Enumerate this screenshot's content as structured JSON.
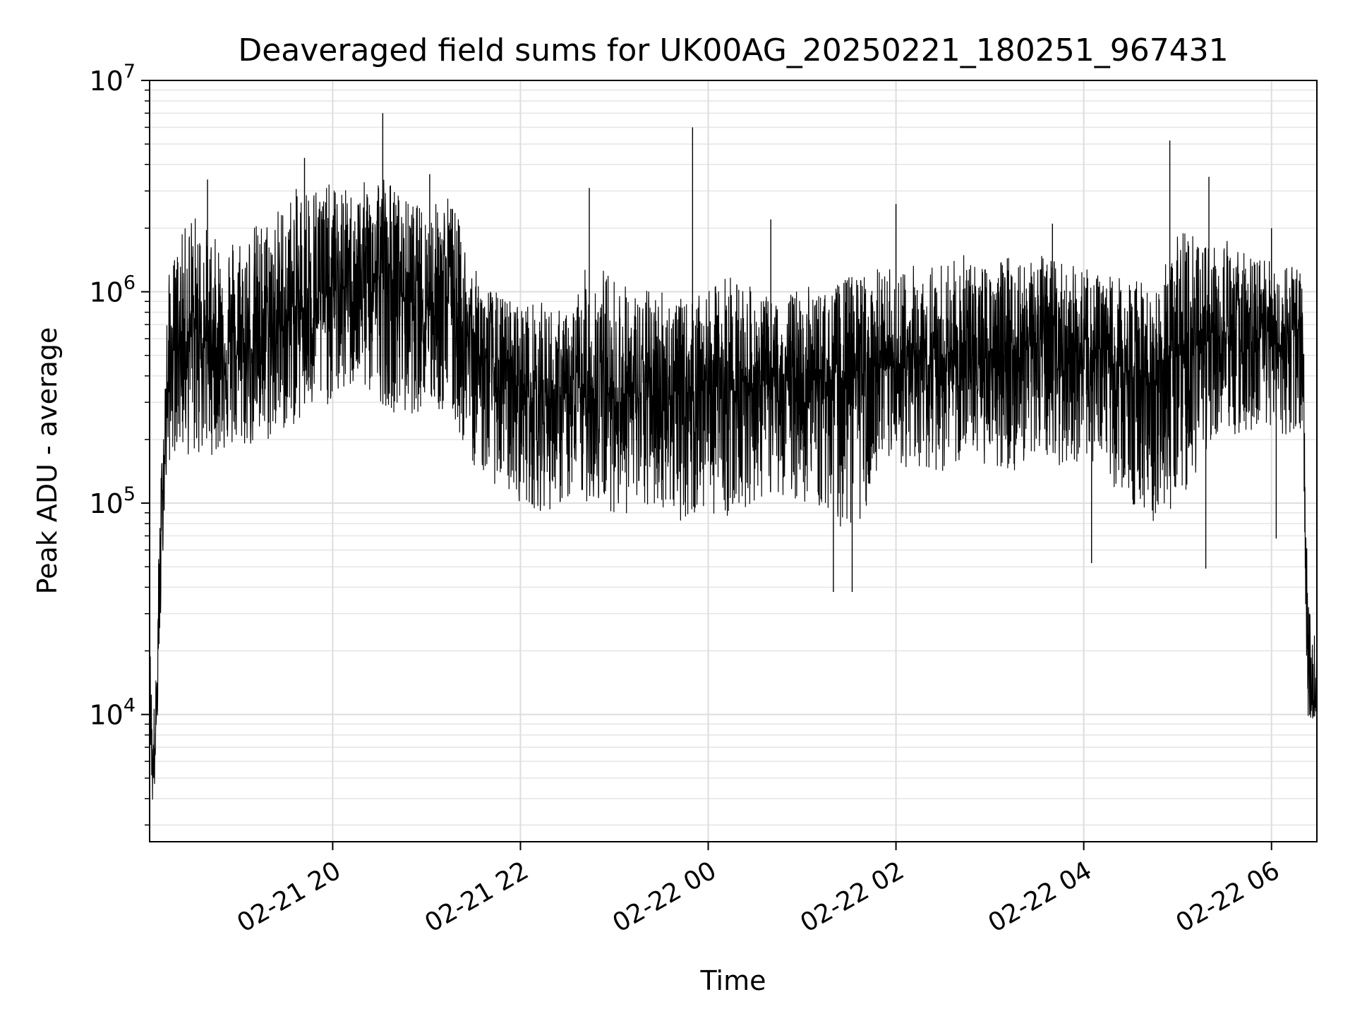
{
  "chart_data": {
    "type": "line",
    "title": "Deaveraged field sums for UK00AG_20250221_180251_967431",
    "xlabel": "Time",
    "ylabel": "Peak ADU - average",
    "yscale": "log",
    "ylim": [
      2500,
      10000000
    ],
    "xlim": [
      "2025-02-21 18:03",
      "2025-02-22 06:29"
    ],
    "grid": true,
    "line_color": "#000000",
    "x_ticks": [
      {
        "value": "2025-02-21 20:00",
        "label": "02-21 20"
      },
      {
        "value": "2025-02-21 22:00",
        "label": "02-21 22"
      },
      {
        "value": "2025-02-22 00:00",
        "label": "02-22 00"
      },
      {
        "value": "2025-02-22 02:00",
        "label": "02-22 02"
      },
      {
        "value": "2025-02-22 04:00",
        "label": "02-22 04"
      },
      {
        "value": "2025-02-22 06:00",
        "label": "02-22 06"
      }
    ],
    "y_ticks": [
      {
        "value": 10000,
        "base": "10",
        "exp": "4"
      },
      {
        "value": 100000,
        "base": "10",
        "exp": "5"
      },
      {
        "value": 1000000,
        "base": "10",
        "exp": "6"
      },
      {
        "value": 10000000,
        "base": "10",
        "exp": "7"
      }
    ],
    "series": [
      {
        "x": [
          "2025-02-21 18:03",
          "2025-02-21 18:05",
          "2025-02-21 18:07",
          "2025-02-21 18:09",
          "2025-02-21 18:12",
          "2025-02-21 18:15",
          "2025-02-21 18:20",
          "2025-02-21 18:30",
          "2025-02-21 18:45",
          "2025-02-21 19:00",
          "2025-02-21 19:15",
          "2025-02-21 19:30",
          "2025-02-21 19:45",
          "2025-02-21 20:00",
          "2025-02-21 20:15",
          "2025-02-21 20:30",
          "2025-02-21 20:45",
          "2025-02-21 21:00",
          "2025-02-21 21:15",
          "2025-02-21 21:30",
          "2025-02-21 21:45",
          "2025-02-21 22:00",
          "2025-02-21 22:15",
          "2025-02-21 22:30",
          "2025-02-21 22:45",
          "2025-02-21 23:00",
          "2025-02-21 23:15",
          "2025-02-21 23:30",
          "2025-02-21 23:45",
          "2025-02-22 00:00",
          "2025-02-22 00:15",
          "2025-02-22 00:30",
          "2025-02-22 00:45",
          "2025-02-22 01:00",
          "2025-02-22 01:15",
          "2025-02-22 01:30",
          "2025-02-22 01:45",
          "2025-02-22 02:00",
          "2025-02-22 02:15",
          "2025-02-22 02:30",
          "2025-02-22 02:45",
          "2025-02-22 03:00",
          "2025-02-22 03:15",
          "2025-02-22 03:30",
          "2025-02-22 03:45",
          "2025-02-22 04:00",
          "2025-02-22 04:15",
          "2025-02-22 04:30",
          "2025-02-22 04:45",
          "2025-02-22 05:00",
          "2025-02-22 05:15",
          "2025-02-22 05:30",
          "2025-02-22 05:45",
          "2025-02-22 06:00",
          "2025-02-22 06:10",
          "2025-02-22 06:15",
          "2025-02-22 06:20",
          "2025-02-22 06:23",
          "2025-02-22 06:26",
          "2025-02-22 06:29"
        ],
        "y": [
          15000,
          5000,
          8000,
          30000,
          150000,
          400000,
          600000,
          650000,
          550000,
          500000,
          600000,
          700000,
          900000,
          1000000,
          1100000,
          1200000,
          1000000,
          900000,
          1000000,
          500000,
          400000,
          350000,
          320000,
          300000,
          320000,
          330000,
          320000,
          320000,
          330000,
          380000,
          350000,
          380000,
          360000,
          380000,
          380000,
          400000,
          420000,
          430000,
          450000,
          480000,
          480000,
          500000,
          550000,
          550000,
          500000,
          480000,
          450000,
          400000,
          380000,
          500000,
          650000,
          600000,
          550000,
          550000,
          600000,
          700000,
          600000,
          15000,
          11000,
          13000
        ],
        "hi": [
          25000,
          10000,
          15000,
          70000,
          350000,
          1200000,
          1600000,
          2500000,
          1800000,
          2000000,
          2200000,
          2800000,
          3500000,
          3200000,
          3000000,
          4000000,
          2800000,
          2500000,
          3000000,
          1300000,
          1000000,
          900000,
          900000,
          800000,
          1500000,
          1200000,
          1000000,
          1100000,
          900000,
          1000000,
          1300000,
          1000000,
          900000,
          1100000,
          1000000,
          1200000,
          1300000,
          1300000,
          1400000,
          1400000,
          1500000,
          1300000,
          1600000,
          1500000,
          1400000,
          1300000,
          1200000,
          1200000,
          1000000,
          2000000,
          1800000,
          1900000,
          1500000,
          1400000,
          1300000,
          1400000,
          1300000,
          40000,
          25000,
          25000
        ],
        "lo": [
          8000,
          3500,
          5000,
          15000,
          80000,
          150000,
          180000,
          160000,
          170000,
          180000,
          180000,
          220000,
          250000,
          300000,
          350000,
          300000,
          250000,
          280000,
          250000,
          150000,
          120000,
          100000,
          90000,
          100000,
          100000,
          90000,
          85000,
          95000,
          80000,
          90000,
          85000,
          100000,
          110000,
          100000,
          90000,
          70000,
          100000,
          150000,
          140000,
          140000,
          150000,
          150000,
          140000,
          170000,
          150000,
          160000,
          120000,
          100000,
          80000,
          90000,
          150000,
          200000,
          180000,
          200000,
          200000,
          200000,
          200000,
          9500,
          9500,
          10000
        ],
        "spikes": [
          {
            "x": "2025-02-21 18:40",
            "y": 3400000
          },
          {
            "x": "2025-02-21 19:42",
            "y": 4300000
          },
          {
            "x": "2025-02-21 20:32",
            "y": 7000000
          },
          {
            "x": "2025-02-21 21:02",
            "y": 3600000
          },
          {
            "x": "2025-02-21 22:44",
            "y": 3100000
          },
          {
            "x": "2025-02-21 23:50",
            "y": 6000000
          },
          {
            "x": "2025-02-22 00:40",
            "y": 2200000
          },
          {
            "x": "2025-02-22 01:20",
            "y": 38000
          },
          {
            "x": "2025-02-22 01:32",
            "y": 38000
          },
          {
            "x": "2025-02-22 02:00",
            "y": 2600000
          },
          {
            "x": "2025-02-22 03:40",
            "y": 2100000
          },
          {
            "x": "2025-02-22 04:05",
            "y": 52000
          },
          {
            "x": "2025-02-22 04:55",
            "y": 5200000
          },
          {
            "x": "2025-02-22 05:18",
            "y": 49000
          },
          {
            "x": "2025-02-22 05:20",
            "y": 3500000
          },
          {
            "x": "2025-02-22 06:00",
            "y": 2000000
          },
          {
            "x": "2025-02-22 06:03",
            "y": 68000
          }
        ]
      }
    ]
  }
}
